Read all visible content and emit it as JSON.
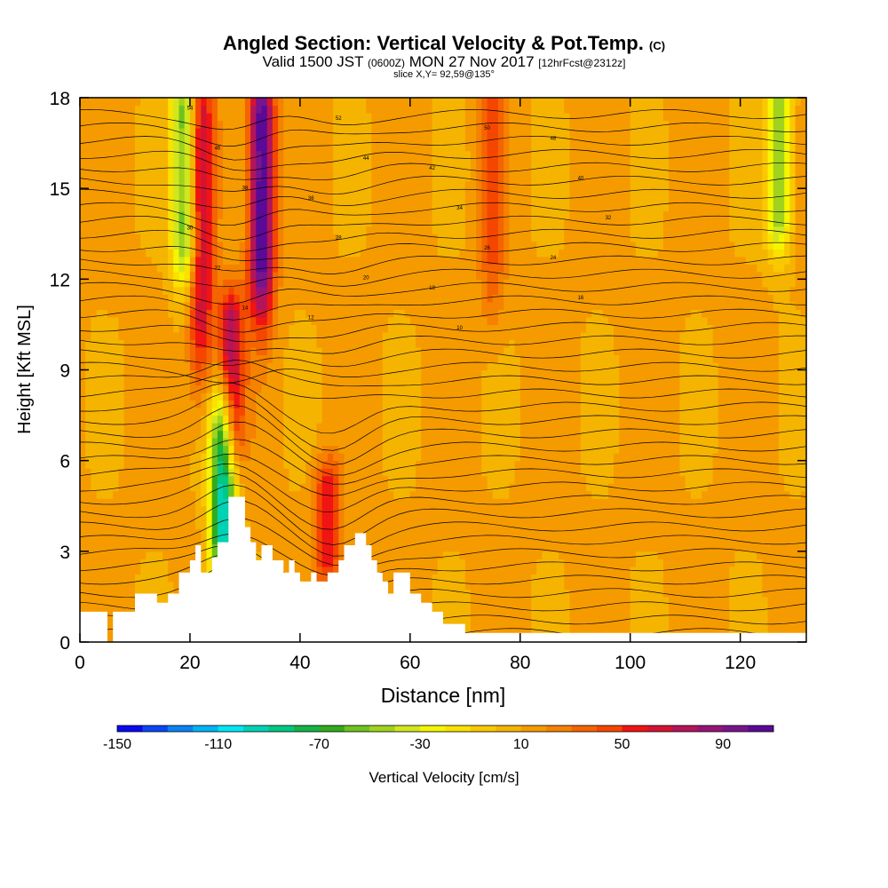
{
  "chart_data": {
    "type": "heatmap",
    "title": "Angled Section: Vertical Velocity & Pot.Temp.",
    "title_suffix": "(C)",
    "subtitle_a": "Valid 1500 JST",
    "subtitle_b": "(0600Z)",
    "subtitle_c": "MON 27 Nov 2017",
    "subtitle_d": "[12hrFcst@2312z]",
    "subtitle2": "slice X,Y= 92,59@135°",
    "xlabel": "Distance [nm]",
    "ylabel": "Height [Kft MSL]",
    "xlim": [
      0,
      132
    ],
    "ylim": [
      0,
      18
    ],
    "xticks": [
      "0",
      "20",
      "40",
      "60",
      "80",
      "100",
      "120"
    ],
    "xtick_values": [
      0,
      20,
      40,
      60,
      80,
      100,
      120
    ],
    "yticks": [
      "0",
      "3",
      "6",
      "9",
      "12",
      "15",
      "18"
    ],
    "ytick_values": [
      0,
      3,
      6,
      9,
      12,
      15,
      18
    ],
    "colorbar": {
      "label": "Vertical Velocity [cm/s]",
      "min": -150,
      "max": 110,
      "step": 10,
      "tick_labels": [
        "-150",
        "-110",
        "-70",
        "-30",
        "10",
        "50",
        "90"
      ],
      "tick_values": [
        -150,
        -110,
        -70,
        -30,
        10,
        50,
        90
      ],
      "colors": [
        "#0a0af0",
        "#0a46f5",
        "#0a82f5",
        "#00b4f5",
        "#00e6f5",
        "#00d2b4",
        "#00c882",
        "#14b446",
        "#32aa1e",
        "#6ec31e",
        "#a0d21e",
        "#d2e61e",
        "#f5f500",
        "#fae100",
        "#fac800",
        "#f5b400",
        "#f59b00",
        "#f58200",
        "#f56400",
        "#f54600",
        "#f01414",
        "#d21432",
        "#b4145a",
        "#961478",
        "#78148c",
        "#5a0a96"
      ]
    },
    "velocity_features": [
      {
        "x": 19,
        "z_range": [
          13,
          18
        ],
        "w": -60
      },
      {
        "x": 22,
        "z_range": [
          10,
          18
        ],
        "w": 70
      },
      {
        "x": 27.5,
        "z_range": [
          7,
          10.5
        ],
        "w": 80
      },
      {
        "x": 33,
        "z_range": [
          12,
          18
        ],
        "w": 110
      },
      {
        "x": 26,
        "z_range": [
          2,
          7
        ],
        "w": -100
      },
      {
        "x": 45,
        "z_range": [
          3,
          5
        ],
        "w": 60
      },
      {
        "x": 75,
        "z_range": [
          12,
          18
        ],
        "w": 40
      },
      {
        "x": 127,
        "z_range": [
          14,
          18
        ],
        "w": -50
      }
    ],
    "terrain": [
      [
        0,
        1
      ],
      [
        5,
        1
      ],
      [
        5,
        0
      ],
      [
        6,
        0
      ],
      [
        6,
        1
      ],
      [
        10,
        1
      ],
      [
        10,
        1.6
      ],
      [
        14,
        1.6
      ],
      [
        14,
        1.3
      ],
      [
        16,
        1.3
      ],
      [
        16,
        1.6
      ],
      [
        18,
        1.6
      ],
      [
        18,
        2.3
      ],
      [
        20,
        2.3
      ],
      [
        20,
        2.7
      ],
      [
        21,
        2.7
      ],
      [
        21,
        3.2
      ],
      [
        22,
        3.2
      ],
      [
        22,
        2.3
      ],
      [
        24,
        2.3
      ],
      [
        24,
        2.8
      ],
      [
        25,
        2.8
      ],
      [
        25,
        3.3
      ],
      [
        27,
        3.3
      ],
      [
        27,
        4.8
      ],
      [
        30,
        4.8
      ],
      [
        30,
        3.8
      ],
      [
        31,
        3.8
      ],
      [
        31,
        3.3
      ],
      [
        32,
        3.3
      ],
      [
        32,
        2.7
      ],
      [
        33,
        2.7
      ],
      [
        33,
        3.2
      ],
      [
        35,
        3.2
      ],
      [
        35,
        2.7
      ],
      [
        37,
        2.7
      ],
      [
        37,
        2.3
      ],
      [
        38,
        2.3
      ],
      [
        38,
        2.7
      ],
      [
        39,
        2.7
      ],
      [
        39,
        2.3
      ],
      [
        40,
        2.3
      ],
      [
        40,
        2.0
      ],
      [
        42,
        2.0
      ],
      [
        42,
        2.3
      ],
      [
        43,
        2.3
      ],
      [
        43,
        2.0
      ],
      [
        45,
        2.0
      ],
      [
        45,
        2.3
      ],
      [
        47,
        2.3
      ],
      [
        47,
        2.7
      ],
      [
        48,
        2.7
      ],
      [
        48,
        3.2
      ],
      [
        50,
        3.2
      ],
      [
        50,
        3.6
      ],
      [
        52,
        3.6
      ],
      [
        52,
        3.2
      ],
      [
        53,
        3.2
      ],
      [
        53,
        2.7
      ],
      [
        54,
        2.7
      ],
      [
        54,
        2.3
      ],
      [
        55,
        2.3
      ],
      [
        55,
        2.0
      ],
      [
        56,
        2.0
      ],
      [
        56,
        1.6
      ],
      [
        57,
        1.6
      ],
      [
        57,
        2.3
      ],
      [
        60,
        2.3
      ],
      [
        60,
        1.6
      ],
      [
        62,
        1.6
      ],
      [
        62,
        1.3
      ],
      [
        64,
        1.3
      ],
      [
        64,
        1.0
      ],
      [
        66,
        1.0
      ],
      [
        66,
        0.6
      ],
      [
        70,
        0.6
      ],
      [
        70,
        0.3
      ],
      [
        132,
        0.3
      ],
      [
        132,
        0
      ],
      [
        0,
        0
      ]
    ],
    "isotherm_labels": [
      "54",
      "52",
      "50",
      "48",
      "46",
      "44",
      "42",
      "40",
      "38",
      "36",
      "34",
      "32",
      "30",
      "28",
      "26",
      "24",
      "22",
      "20",
      "18",
      "16",
      "14",
      "12",
      "10"
    ]
  }
}
